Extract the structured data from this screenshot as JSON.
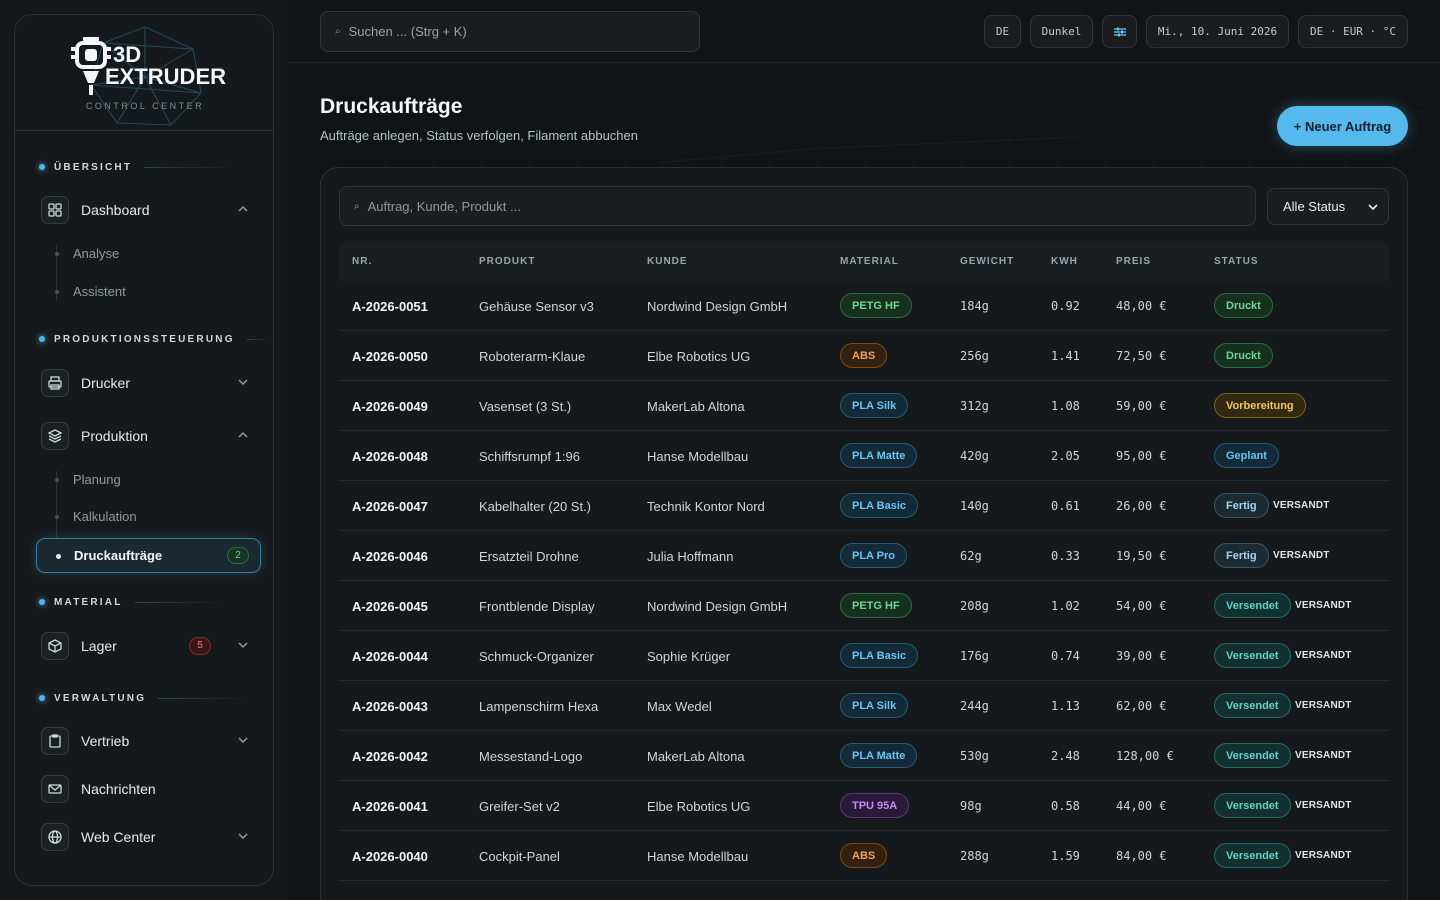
{
  "logo": {
    "line1": "3D",
    "line2": "EXTRUDER",
    "subtitle": "CONTROL CENTER"
  },
  "sidebar": {
    "sections": [
      {
        "label": "ÜBERSICHT"
      },
      {
        "label": "PRODUKTIONSSTEUERUNG"
      },
      {
        "label": "MATERIAL"
      },
      {
        "label": "VERWALTUNG"
      }
    ],
    "items": {
      "dashboard": {
        "label": "Dashboard",
        "icon": "grid-icon"
      },
      "analyse": {
        "label": "Analyse"
      },
      "assistent": {
        "label": "Assistent"
      },
      "drucker": {
        "label": "Drucker",
        "icon": "printer-icon"
      },
      "produktion": {
        "label": "Produktion",
        "icon": "layers-icon"
      },
      "planung": {
        "label": "Planung"
      },
      "kalkulation": {
        "label": "Kalkulation"
      },
      "druckauftraege": {
        "label": "Druckaufträge",
        "badge": "2"
      },
      "lager": {
        "label": "Lager",
        "icon": "box-icon",
        "badge": "5"
      },
      "vertrieb": {
        "label": "Vertrieb",
        "icon": "clipboard-icon"
      },
      "nachrichten": {
        "label": "Nachrichten",
        "icon": "mail-icon"
      },
      "webcenter": {
        "label": "Web Center",
        "icon": "globe-icon"
      }
    }
  },
  "topbar": {
    "search_placeholder": "Suchen ... (Strg + K)",
    "lang": "DE",
    "theme": "Dunkel",
    "date": "Mi., 10. Juni 2026",
    "locale": "DE · EUR · °C"
  },
  "page": {
    "title": "Druckaufträge",
    "subtitle": "Aufträge anlegen, Status verfolgen, Filament abbuchen",
    "new_button": "+ Neuer Auftrag",
    "filter_placeholder": "Auftrag, Kunde, Produkt ...",
    "status_filter": "Alle Status"
  },
  "table": {
    "columns": [
      "NR.",
      "PRODUKT",
      "KUNDE",
      "MATERIAL",
      "GEWICHT",
      "KWH",
      "PREIS",
      "STATUS"
    ],
    "rows": [
      {
        "nr": "A-2026-0051",
        "produkt": "Gehäuse Sensor v3",
        "kunde": "Nordwind Design GmbH",
        "material": "PETG HF",
        "mat": "green",
        "gewicht": "184g",
        "kwh": "0.92",
        "preis": "48,00 €",
        "status": "Druckt",
        "st": "green",
        "tag": ""
      },
      {
        "nr": "A-2026-0050",
        "produkt": "Roboterarm-Klaue",
        "kunde": "Elbe Robotics UG",
        "material": "ABS",
        "mat": "orange",
        "gewicht": "256g",
        "kwh": "1.41",
        "preis": "72,50 €",
        "status": "Druckt",
        "st": "green",
        "tag": ""
      },
      {
        "nr": "A-2026-0049",
        "produkt": "Vasenset (3 St.)",
        "kunde": "MakerLab Altona",
        "material": "PLA Silk",
        "mat": "blue",
        "gewicht": "312g",
        "kwh": "1.08",
        "preis": "59,00 €",
        "status": "Vorbereitung",
        "st": "yellow",
        "tag": ""
      },
      {
        "nr": "A-2026-0048",
        "produkt": "Schiffsrumpf 1:96",
        "kunde": "Hanse Modellbau",
        "material": "PLA Matte",
        "mat": "blue",
        "gewicht": "420g",
        "kwh": "2.05",
        "preis": "95,00 €",
        "status": "Geplant",
        "st": "blue",
        "tag": ""
      },
      {
        "nr": "A-2026-0047",
        "produkt": "Kabelhalter (20 St.)",
        "kunde": "Technik Kontor Nord",
        "material": "PLA Basic",
        "mat": "blue",
        "gewicht": "140g",
        "kwh": "0.61",
        "preis": "26,00 €",
        "status": "Fertig",
        "st": "slate",
        "tag": "VERSANDT"
      },
      {
        "nr": "A-2026-0046",
        "produkt": "Ersatzteil Drohne",
        "kunde": "Julia Hoffmann",
        "material": "PLA Pro",
        "mat": "blue",
        "gewicht": "62g",
        "kwh": "0.33",
        "preis": "19,50 €",
        "status": "Fertig",
        "st": "slate",
        "tag": "VERSANDT"
      },
      {
        "nr": "A-2026-0045",
        "produkt": "Frontblende Display",
        "kunde": "Nordwind Design GmbH",
        "material": "PETG HF",
        "mat": "green",
        "gewicht": "208g",
        "kwh": "1.02",
        "preis": "54,00 €",
        "status": "Versendet",
        "st": "teal",
        "tag": "VERSANDT"
      },
      {
        "nr": "A-2026-0044",
        "produkt": "Schmuck-Organizer",
        "kunde": "Sophie Krüger",
        "material": "PLA Basic",
        "mat": "blue",
        "gewicht": "176g",
        "kwh": "0.74",
        "preis": "39,00 €",
        "status": "Versendet",
        "st": "teal",
        "tag": "VERSANDT"
      },
      {
        "nr": "A-2026-0043",
        "produkt": "Lampenschirm Hexa",
        "kunde": "Max Wedel",
        "material": "PLA Silk",
        "mat": "blue",
        "gewicht": "244g",
        "kwh": "1.13",
        "preis": "62,00 €",
        "status": "Versendet",
        "st": "teal",
        "tag": "VERSANDT"
      },
      {
        "nr": "A-2026-0042",
        "produkt": "Messestand-Logo",
        "kunde": "MakerLab Altona",
        "material": "PLA Matte",
        "mat": "blue",
        "gewicht": "530g",
        "kwh": "2.48",
        "preis": "128,00 €",
        "status": "Versendet",
        "st": "teal",
        "tag": "VERSANDT"
      },
      {
        "nr": "A-2026-0041",
        "produkt": "Greifer-Set v2",
        "kunde": "Elbe Robotics UG",
        "material": "TPU 95A",
        "mat": "purple",
        "gewicht": "98g",
        "kwh": "0.58",
        "preis": "44,00 €",
        "status": "Versendet",
        "st": "teal",
        "tag": "VERSANDT"
      },
      {
        "nr": "A-2026-0040",
        "produkt": "Cockpit-Panel",
        "kunde": "Hanse Modellbau",
        "material": "ABS",
        "mat": "orange",
        "gewicht": "288g",
        "kwh": "1.59",
        "preis": "84,00 €",
        "status": "Versendet",
        "st": "teal",
        "tag": "VERSANDT"
      }
    ]
  },
  "colors": {
    "accent": "#56b9ee",
    "green": {
      "bg": "#15301f",
      "bd": "#2f6a43",
      "fg": "#6fd692"
    },
    "orange": {
      "bg": "#33200f",
      "bd": "#7a4a1e",
      "fg": "#f0a35a"
    },
    "blue": {
      "bg": "#132a38",
      "bd": "#2a5a74",
      "fg": "#6cc4f0"
    },
    "purple": {
      "bg": "#2a1a38",
      "bd": "#5a3a7a",
      "fg": "#c48cf0"
    },
    "yellow": {
      "bg": "#33290f",
      "bd": "#7a6320",
      "fg": "#f0c75a"
    },
    "slate": {
      "bg": "#1c2a33",
      "bd": "#3c5566",
      "fg": "#a8d4ec"
    },
    "teal": {
      "bg": "#12302f",
      "bd": "#2a6a64",
      "fg": "#66d0c6"
    }
  }
}
